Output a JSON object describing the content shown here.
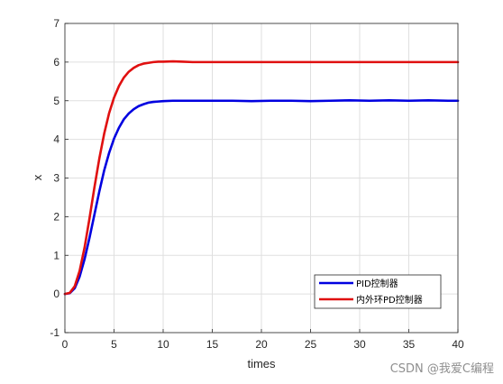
{
  "watermark": "CSDN @我爱C编程",
  "chart_data": {
    "type": "line",
    "xlabel": "times",
    "ylabel": "x",
    "xlim": [
      0,
      40
    ],
    "ylim": [
      -1,
      7
    ],
    "xticks": [
      "0",
      "5",
      "10",
      "15",
      "20",
      "25",
      "30",
      "35",
      "40"
    ],
    "yticks": [
      "-1",
      "0",
      "1",
      "2",
      "3",
      "4",
      "5",
      "6",
      "7"
    ],
    "grid": true,
    "legend_position": "lower-right",
    "series": [
      {
        "name": "PID控制器",
        "color": "#0000e0",
        "x": [
          0,
          0.5,
          1,
          1.5,
          2,
          2.5,
          3,
          3.5,
          4,
          4.5,
          5,
          5.5,
          6,
          6.5,
          7,
          7.5,
          8,
          8.5,
          9,
          9.5,
          10,
          11,
          12,
          13,
          14,
          15,
          17,
          19,
          21,
          23,
          25,
          27,
          29,
          31,
          33,
          35,
          37,
          39,
          40
        ],
        "y": [
          0,
          0.02,
          0.15,
          0.45,
          0.9,
          1.45,
          2.05,
          2.65,
          3.2,
          3.65,
          4.02,
          4.3,
          4.52,
          4.67,
          4.78,
          4.86,
          4.91,
          4.95,
          4.97,
          4.98,
          4.99,
          5.0,
          5.0,
          5.0,
          5.0,
          5.0,
          5.0,
          4.99,
          5.0,
          5.0,
          4.99,
          5.0,
          5.01,
          5.0,
          5.01,
          5.0,
          5.01,
          5.0,
          5.0
        ]
      },
      {
        "name": "内外环PD控制器",
        "color": "#e01010",
        "x": [
          0,
          0.5,
          1,
          1.5,
          2,
          2.5,
          3,
          3.5,
          4,
          4.5,
          5,
          5.5,
          6,
          6.5,
          7,
          7.5,
          8,
          8.5,
          9,
          9.5,
          10,
          11,
          12,
          13,
          14,
          15,
          17,
          19,
          21,
          23,
          25,
          27,
          29,
          31,
          33,
          35,
          37,
          39,
          40
        ],
        "y": [
          0,
          0.03,
          0.2,
          0.6,
          1.2,
          1.95,
          2.75,
          3.5,
          4.15,
          4.68,
          5.08,
          5.38,
          5.6,
          5.75,
          5.85,
          5.92,
          5.96,
          5.98,
          6.0,
          6.01,
          6.01,
          6.02,
          6.01,
          6.0,
          6.0,
          6.0,
          6.0,
          6.0,
          6.0,
          6.0,
          6.0,
          6.0,
          6.0,
          6.0,
          6.0,
          6.0,
          6.0,
          6.0,
          6.0
        ]
      }
    ]
  }
}
